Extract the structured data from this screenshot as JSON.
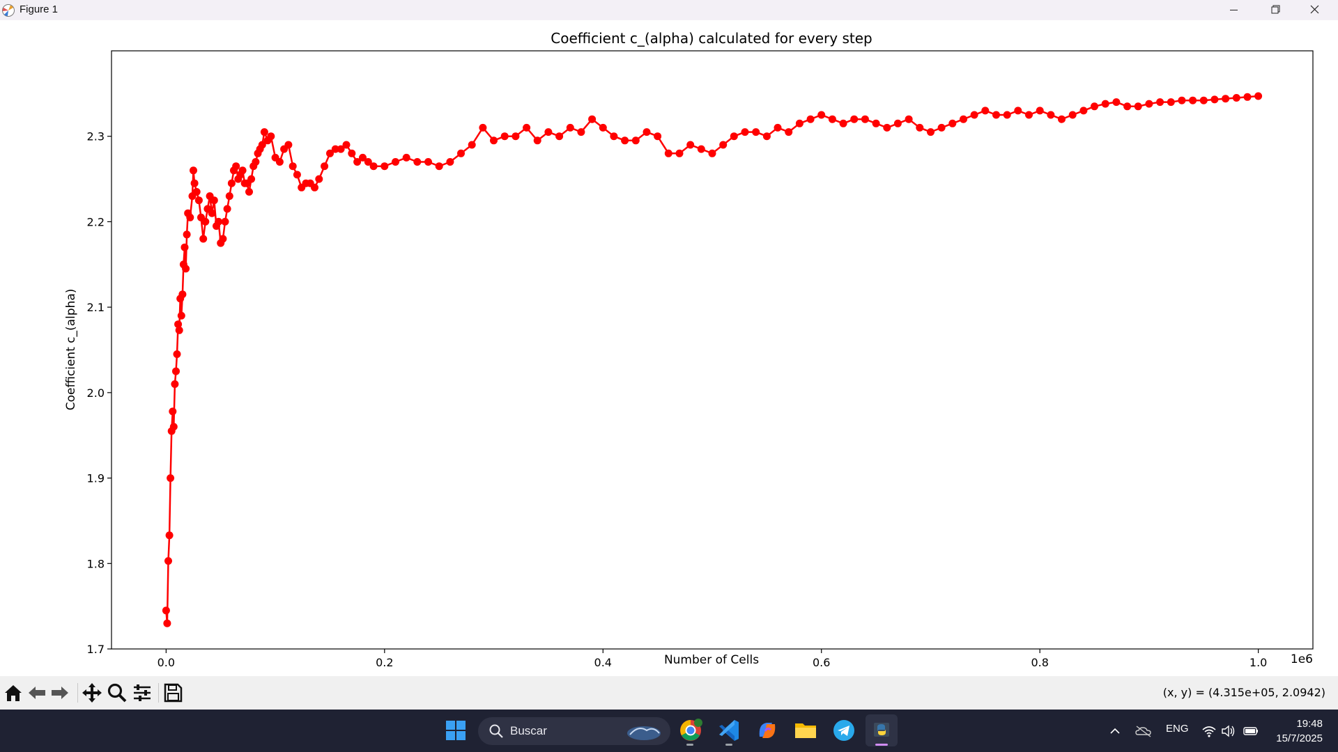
{
  "window": {
    "title": "Figure 1",
    "controls": [
      "minimize-icon",
      "restore-icon",
      "close-icon"
    ]
  },
  "chart_data": {
    "type": "line",
    "title": "Coefficient c_(alpha) calculated for every step",
    "xlabel": "Number of Cells",
    "ylabel": "Coefficient c_(alpha)",
    "x_offset_text": "1e6",
    "xlim": [
      -0.05,
      1.05
    ],
    "ylim": [
      1.7,
      2.4
    ],
    "xticks": [
      0.0,
      0.2,
      0.4,
      0.6,
      0.8,
      1.0
    ],
    "xtick_labels": [
      "0.0",
      "0.2",
      "0.4",
      "0.6",
      "0.8",
      "1.0"
    ],
    "yticks": [
      1.7,
      1.8,
      1.9,
      2.0,
      2.1,
      2.2,
      2.3
    ],
    "ytick_labels": [
      "1.7",
      "1.8",
      "1.9",
      "2.0",
      "2.1",
      "2.2",
      "2.3"
    ],
    "grid": false,
    "marker": "o",
    "color": "#ff0000",
    "series": [
      {
        "x": [
          0.0,
          0.001,
          0.002,
          0.003,
          0.004,
          0.005,
          0.006,
          0.007,
          0.008,
          0.009,
          0.01,
          0.011,
          0.012,
          0.013,
          0.014,
          0.015,
          0.016,
          0.017,
          0.018,
          0.019,
          0.02,
          0.022,
          0.024,
          0.025,
          0.026,
          0.028,
          0.03,
          0.032,
          0.034,
          0.036,
          0.038,
          0.04,
          0.042,
          0.044,
          0.046,
          0.048,
          0.05,
          0.052,
          0.054,
          0.056,
          0.058,
          0.06,
          0.062,
          0.064,
          0.066,
          0.068,
          0.07,
          0.072,
          0.074,
          0.076,
          0.078,
          0.08,
          0.082,
          0.084,
          0.086,
          0.088,
          0.09,
          0.093,
          0.096,
          0.1,
          0.104,
          0.108,
          0.112,
          0.116,
          0.12,
          0.124,
          0.128,
          0.132,
          0.136,
          0.14,
          0.145,
          0.15,
          0.155,
          0.16,
          0.165,
          0.17,
          0.175,
          0.18,
          0.185,
          0.19,
          0.2,
          0.21,
          0.22,
          0.23,
          0.24,
          0.25,
          0.26,
          0.27,
          0.28,
          0.29,
          0.3,
          0.31,
          0.32,
          0.33,
          0.34,
          0.35,
          0.36,
          0.37,
          0.38,
          0.39,
          0.4,
          0.41,
          0.42,
          0.43,
          0.44,
          0.45,
          0.46,
          0.47,
          0.48,
          0.49,
          0.5,
          0.51,
          0.52,
          0.53,
          0.54,
          0.55,
          0.56,
          0.57,
          0.58,
          0.59,
          0.6,
          0.61,
          0.62,
          0.63,
          0.64,
          0.65,
          0.66,
          0.67,
          0.68,
          0.69,
          0.7,
          0.71,
          0.72,
          0.73,
          0.74,
          0.75,
          0.76,
          0.77,
          0.78,
          0.79,
          0.8,
          0.81,
          0.82,
          0.83,
          0.84,
          0.85,
          0.86,
          0.87,
          0.88,
          0.89,
          0.9,
          0.91,
          0.92,
          0.93,
          0.94,
          0.95,
          0.96,
          0.97,
          0.98,
          0.99,
          1.0
        ],
        "y": [
          1.745,
          1.73,
          1.803,
          1.833,
          1.9,
          1.955,
          1.978,
          1.96,
          2.01,
          2.025,
          2.045,
          2.08,
          2.073,
          2.11,
          2.09,
          2.115,
          2.15,
          2.17,
          2.145,
          2.185,
          2.21,
          2.205,
          2.23,
          2.26,
          2.245,
          2.235,
          2.225,
          2.205,
          2.18,
          2.2,
          2.215,
          2.23,
          2.21,
          2.225,
          2.195,
          2.2,
          2.175,
          2.18,
          2.2,
          2.215,
          2.23,
          2.245,
          2.26,
          2.265,
          2.25,
          2.255,
          2.26,
          2.245,
          2.245,
          2.235,
          2.25,
          2.265,
          2.27,
          2.28,
          2.285,
          2.29,
          2.305,
          2.295,
          2.3,
          2.275,
          2.27,
          2.285,
          2.29,
          2.265,
          2.255,
          2.24,
          2.245,
          2.245,
          2.24,
          2.25,
          2.265,
          2.28,
          2.285,
          2.285,
          2.29,
          2.28,
          2.27,
          2.275,
          2.27,
          2.265,
          2.265,
          2.27,
          2.275,
          2.27,
          2.27,
          2.265,
          2.27,
          2.28,
          2.29,
          2.31,
          2.295,
          2.3,
          2.3,
          2.31,
          2.295,
          2.305,
          2.3,
          2.31,
          2.305,
          2.32,
          2.31,
          2.3,
          2.295,
          2.295,
          2.305,
          2.3,
          2.28,
          2.28,
          2.29,
          2.285,
          2.28,
          2.29,
          2.3,
          2.305,
          2.305,
          2.3,
          2.31,
          2.305,
          2.315,
          2.32,
          2.325,
          2.32,
          2.315,
          2.32,
          2.32,
          2.315,
          2.31,
          2.315,
          2.32,
          2.31,
          2.305,
          2.31,
          2.315,
          2.32,
          2.325,
          2.33,
          2.325,
          2.325,
          2.33,
          2.325,
          2.33,
          2.325,
          2.32,
          2.325,
          2.33,
          2.335,
          2.338,
          2.34,
          2.335,
          2.335,
          2.338,
          2.34,
          2.34,
          2.342,
          2.342,
          2.342,
          2.343,
          2.344,
          2.345,
          2.346,
          2.347
        ]
      }
    ]
  },
  "toolbar": {
    "buttons": [
      "home-icon",
      "back-icon",
      "forward-icon",
      "pan-icon",
      "zoom-icon",
      "configure-subplots-icon",
      "save-icon"
    ],
    "coords": "(x, y) = (4.315e+05, 2.0942)"
  },
  "taskbar": {
    "search_label": "Buscar",
    "apps": [
      "windows-start-icon",
      "chrome-icon",
      "vscode-icon",
      "copilot-icon",
      "file-explorer-icon",
      "telegram-icon",
      "python-icon"
    ],
    "language": "ENG",
    "time": "19:48",
    "date": "15/7/2025",
    "accent": "#1f2233"
  }
}
